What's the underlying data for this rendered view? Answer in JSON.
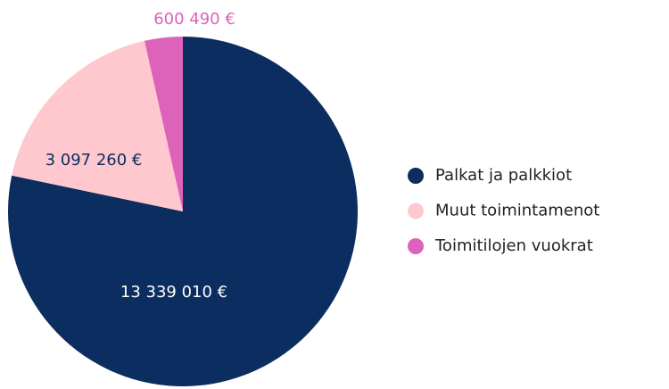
{
  "chart_data": {
    "type": "pie",
    "categories": [
      "Palkat ja palkkiot",
      "Muut toimintamenot",
      "Toimitilojen vuokrat"
    ],
    "values": [
      13339010,
      3097260,
      600490
    ],
    "value_labels": [
      "13 339 010 €",
      "3 097 260 €",
      "600 490 €"
    ],
    "colors": [
      "#0b2d5f",
      "#ffc8cf",
      "#dc63b9"
    ],
    "legend": "right"
  }
}
